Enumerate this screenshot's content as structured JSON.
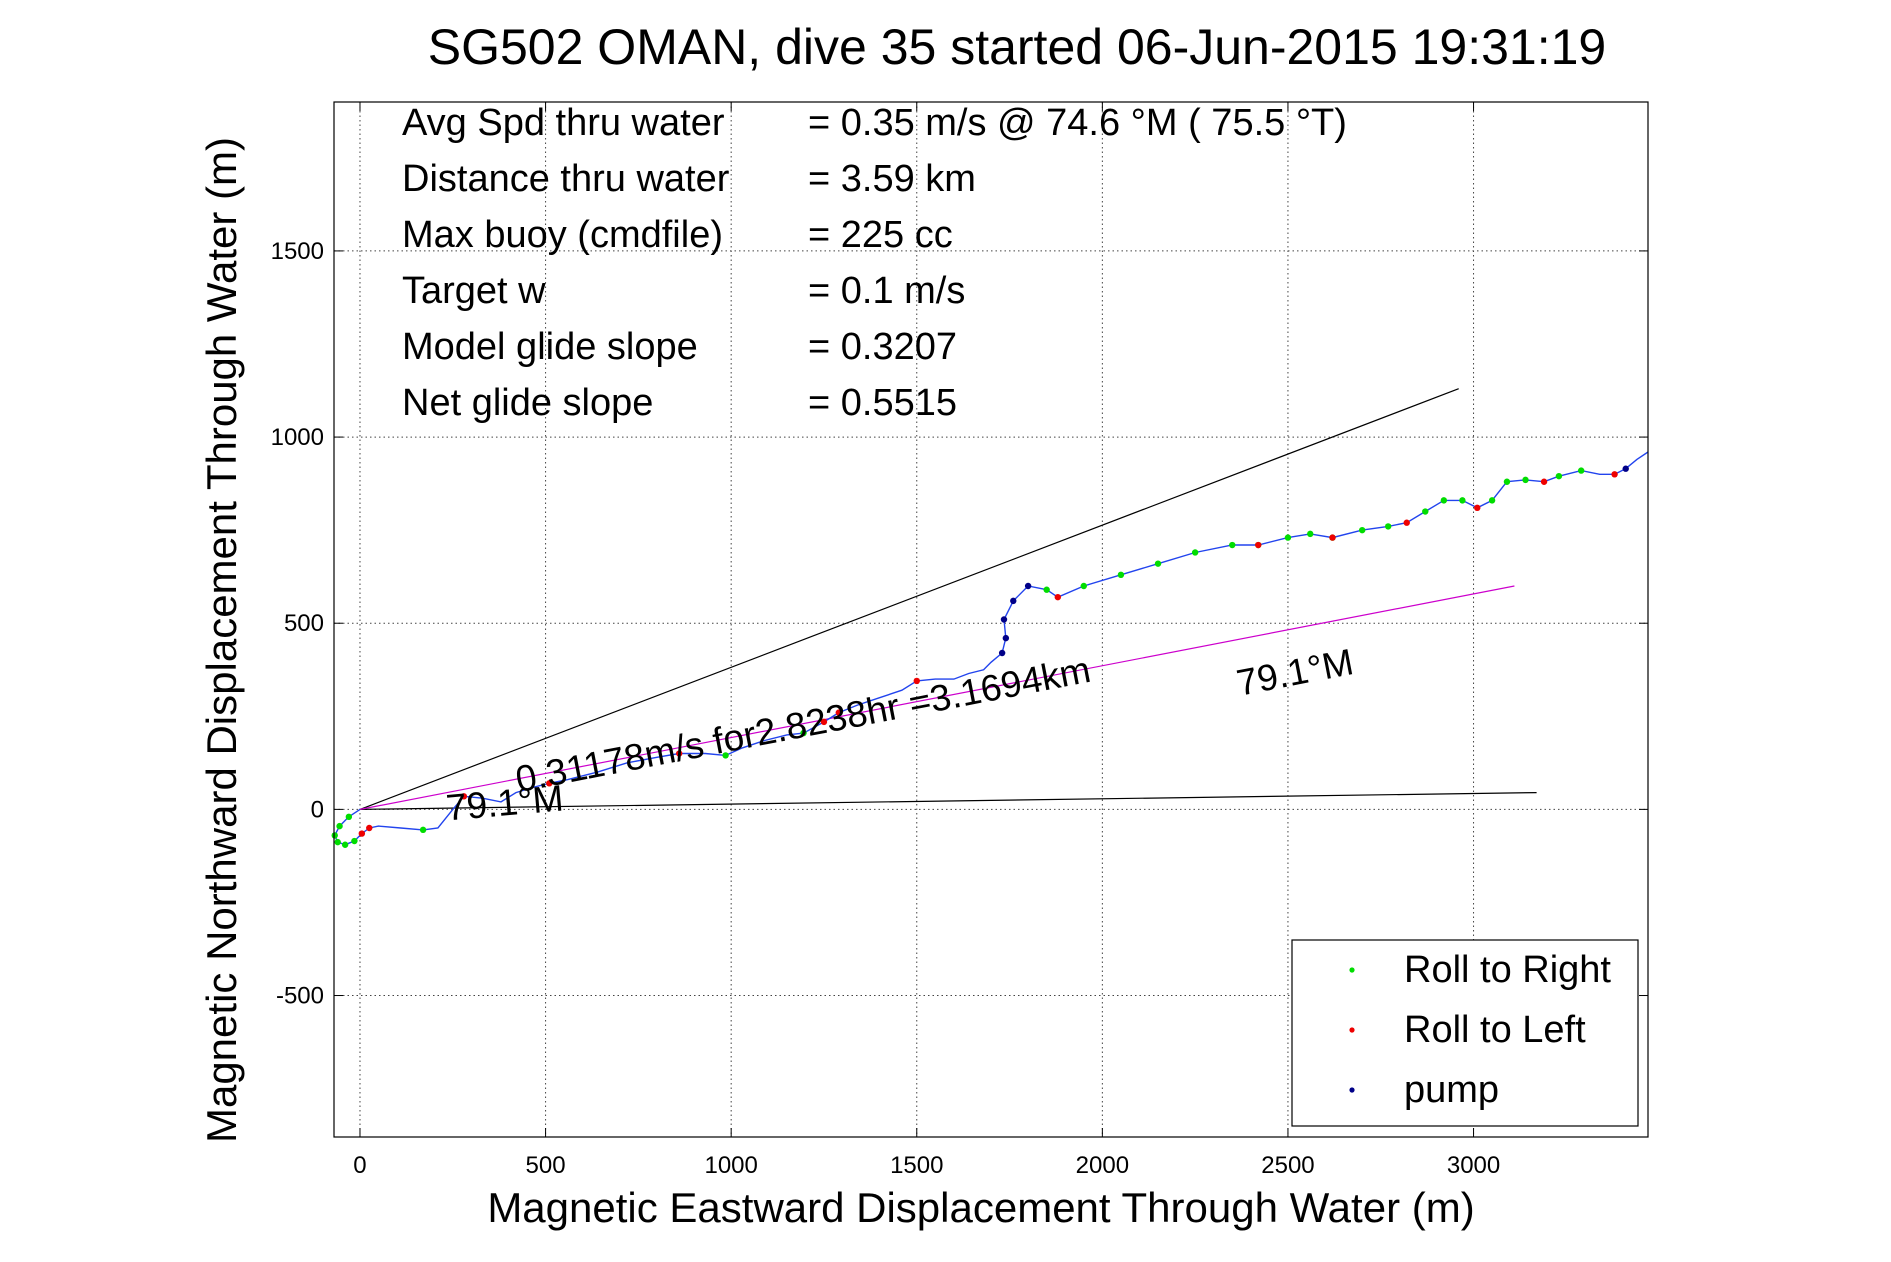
{
  "chart_data": {
    "type": "scatter",
    "title": "SG502 OMAN, dive 35 started 06-Jun-2015 19:31:19",
    "xlabel": "Magnetic Eastward Displacement Through Water (m)",
    "ylabel": "Magnetic Northward Displacement Through Water (m)",
    "xlim": [
      -70,
      3470
    ],
    "ylim": [
      -880,
      1900
    ],
    "x_ticks": [
      0,
      500,
      1000,
      1500,
      2000,
      2500,
      3000
    ],
    "y_ticks": [
      -500,
      0,
      500,
      1000,
      1500
    ],
    "grid": true,
    "legend_position": "bottom-right",
    "info_lines": [
      {
        "label": "Avg Spd thru water",
        "value": "=  0.35 m/s @  74.6 °M ( 75.5 °T)"
      },
      {
        "label": "Distance thru water",
        "value": "=  3.59 km"
      },
      {
        "label": "Max buoy (cmdfile)",
        "value": "= 225 cc"
      },
      {
        "label": "Target w",
        "value": "= 0.1 m/s"
      },
      {
        "label": "Model glide slope",
        "value": "= 0.3207"
      },
      {
        "label": "Net glide slope",
        "value": "= 0.5515"
      }
    ],
    "annotations": {
      "current_text": "0.31178m/s for2.8238hr =3.1694km",
      "heading_label_1": "79.1°M",
      "heading_label_2": "79.1°M"
    },
    "reference_lines": [
      {
        "name": "upper-bound",
        "color": "#000000",
        "points": [
          [
            0,
            0
          ],
          [
            2960,
            1130
          ]
        ]
      },
      {
        "name": "lower-bound",
        "color": "#000000",
        "points": [
          [
            0,
            0
          ],
          [
            3170,
            45
          ]
        ]
      },
      {
        "name": "current-heading",
        "color": "#cc00cc",
        "points": [
          [
            0,
            0
          ],
          [
            3110,
            600
          ]
        ]
      }
    ],
    "track": [
      [
        0,
        0
      ],
      [
        -30,
        -20
      ],
      [
        -55,
        -45
      ],
      [
        -68,
        -70
      ],
      [
        -60,
        -88
      ],
      [
        -40,
        -95
      ],
      [
        -15,
        -85
      ],
      [
        5,
        -65
      ],
      [
        25,
        -50
      ],
      [
        50,
        -45
      ],
      [
        110,
        -50
      ],
      [
        170,
        -55
      ],
      [
        210,
        -50
      ],
      [
        250,
        0
      ],
      [
        280,
        35
      ],
      [
        330,
        30
      ],
      [
        380,
        20
      ],
      [
        420,
        45
      ],
      [
        470,
        60
      ],
      [
        510,
        70
      ],
      [
        560,
        80
      ],
      [
        640,
        100
      ],
      [
        720,
        125
      ],
      [
        800,
        140
      ],
      [
        860,
        150
      ],
      [
        930,
        150
      ],
      [
        985,
        145
      ],
      [
        1030,
        165
      ],
      [
        1090,
        185
      ],
      [
        1150,
        200
      ],
      [
        1195,
        205
      ],
      [
        1250,
        235
      ],
      [
        1290,
        260
      ],
      [
        1340,
        280
      ],
      [
        1400,
        300
      ],
      [
        1460,
        320
      ],
      [
        1500,
        345
      ],
      [
        1550,
        350
      ],
      [
        1600,
        350
      ],
      [
        1640,
        365
      ],
      [
        1680,
        375
      ],
      [
        1700,
        395
      ],
      [
        1730,
        420
      ],
      [
        1740,
        460
      ],
      [
        1735,
        510
      ],
      [
        1760,
        560
      ],
      [
        1800,
        600
      ],
      [
        1850,
        590
      ],
      [
        1880,
        570
      ],
      [
        1950,
        600
      ],
      [
        2050,
        630
      ],
      [
        2150,
        660
      ],
      [
        2250,
        690
      ],
      [
        2350,
        710
      ],
      [
        2420,
        710
      ],
      [
        2500,
        730
      ],
      [
        2560,
        740
      ],
      [
        2620,
        730
      ],
      [
        2700,
        750
      ],
      [
        2770,
        760
      ],
      [
        2820,
        770
      ],
      [
        2870,
        800
      ],
      [
        2920,
        830
      ],
      [
        2970,
        830
      ],
      [
        3010,
        810
      ],
      [
        3050,
        830
      ],
      [
        3090,
        880
      ],
      [
        3140,
        885
      ],
      [
        3190,
        880
      ],
      [
        3230,
        895
      ],
      [
        3290,
        910
      ],
      [
        3340,
        900
      ],
      [
        3380,
        900
      ],
      [
        3410,
        915
      ],
      [
        3440,
        940
      ],
      [
        3470,
        960
      ]
    ],
    "series": [
      {
        "name": "Roll to Right",
        "color": "#00dd00",
        "points": [
          [
            -30,
            -20
          ],
          [
            -55,
            -45
          ],
          [
            -68,
            -70
          ],
          [
            -60,
            -88
          ],
          [
            -40,
            -95
          ],
          [
            -15,
            -85
          ],
          [
            170,
            -55
          ],
          [
            985,
            145
          ],
          [
            1195,
            205
          ],
          [
            1850,
            590
          ],
          [
            1950,
            600
          ],
          [
            2050,
            630
          ],
          [
            2150,
            660
          ],
          [
            2250,
            690
          ],
          [
            2350,
            710
          ],
          [
            2420,
            710
          ],
          [
            2500,
            730
          ],
          [
            2560,
            740
          ],
          [
            2620,
            730
          ],
          [
            2700,
            750
          ],
          [
            2770,
            760
          ],
          [
            2870,
            800
          ],
          [
            2920,
            830
          ],
          [
            2970,
            830
          ],
          [
            3050,
            830
          ],
          [
            3090,
            880
          ],
          [
            3140,
            885
          ],
          [
            3230,
            895
          ],
          [
            3290,
            910
          ]
        ]
      },
      {
        "name": "Roll to Left",
        "color": "#ee0000",
        "points": [
          [
            5,
            -65
          ],
          [
            25,
            -50
          ],
          [
            280,
            35
          ],
          [
            510,
            70
          ],
          [
            860,
            150
          ],
          [
            1250,
            235
          ],
          [
            1290,
            260
          ],
          [
            1500,
            345
          ],
          [
            1880,
            570
          ],
          [
            2420,
            710
          ],
          [
            2620,
            730
          ],
          [
            2820,
            770
          ],
          [
            3010,
            810
          ],
          [
            3190,
            880
          ],
          [
            3380,
            900
          ]
        ]
      },
      {
        "name": "pump",
        "color": "#000088",
        "points": [
          [
            1730,
            420
          ],
          [
            1740,
            460
          ],
          [
            1735,
            510
          ],
          [
            1760,
            560
          ],
          [
            1800,
            600
          ],
          [
            3410,
            915
          ]
        ]
      }
    ]
  }
}
